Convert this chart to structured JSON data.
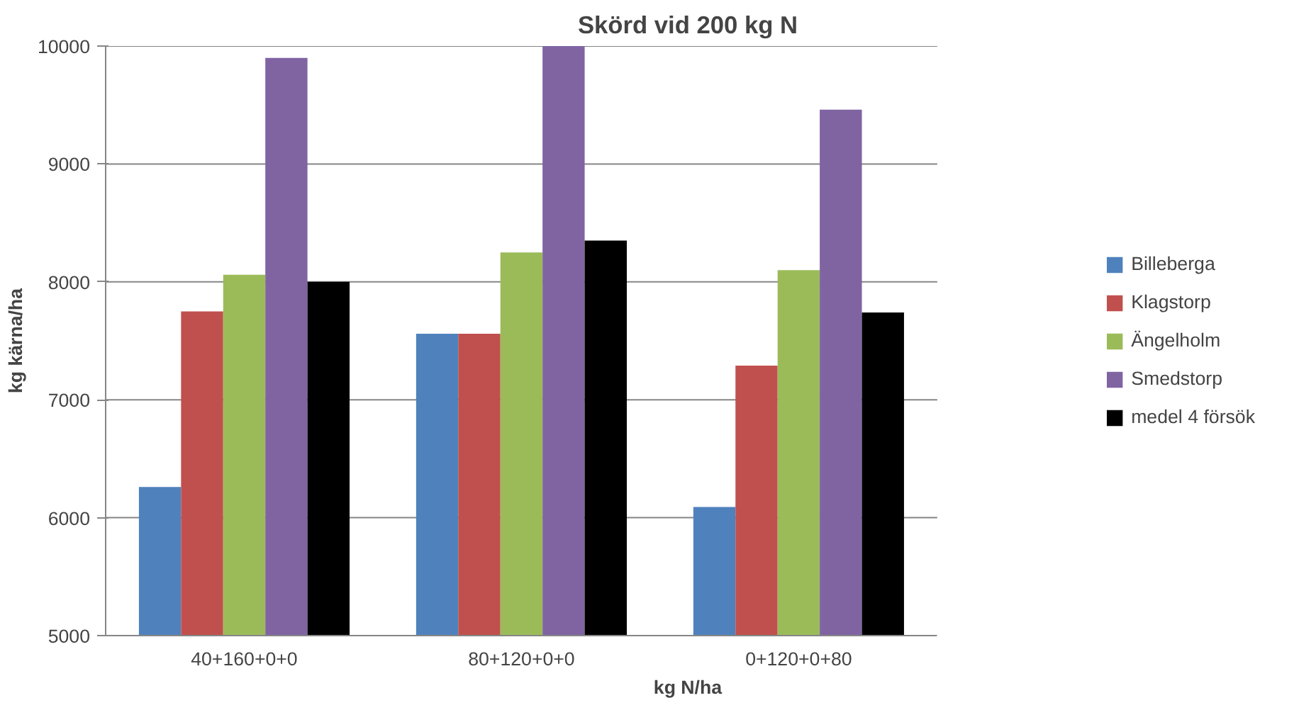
{
  "chart_data": {
    "type": "bar",
    "title": "Skörd vid 200 kg N",
    "xlabel": "kg N/ha",
    "ylabel": "kg kärna/ha",
    "categories": [
      "40+160+0+0",
      "80+120+0+0",
      "0+120+0+80"
    ],
    "series": [
      {
        "name": "Billeberga",
        "color": "#4f81bd",
        "values": [
          6260,
          7560,
          6090
        ]
      },
      {
        "name": "Klagstorp",
        "color": "#c0504d",
        "values": [
          7750,
          7560,
          7290
        ]
      },
      {
        "name": "Ängelholm",
        "color": "#9bbb59",
        "values": [
          8060,
          8250,
          8100
        ]
      },
      {
        "name": "Smedstorp",
        "color": "#8064a2",
        "values": [
          9900,
          10000,
          9460
        ]
      },
      {
        "name": "medel 4 försök",
        "color": "#000000",
        "values": [
          8000,
          8350,
          7740
        ]
      }
    ],
    "ylim": [
      5000,
      10000
    ],
    "yticks": [
      5000,
      6000,
      7000,
      8000,
      9000,
      10000
    ],
    "grid": "y",
    "legend": "right"
  }
}
